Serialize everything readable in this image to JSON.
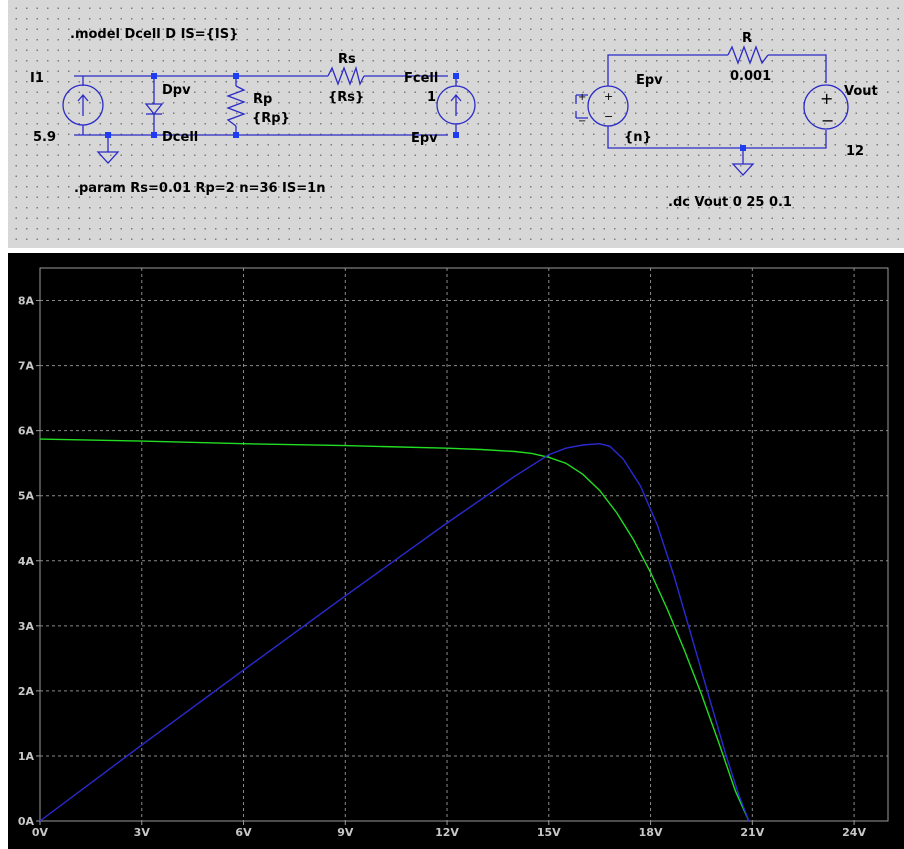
{
  "schematic": {
    "model_directive": ".model Dcell D IS={IS}",
    "param_directive": ".param Rs=0.01 Rp=2 n=36 IS=1n",
    "dc_directive": ".dc Vout 0 25 0.1",
    "i1_name": "I1",
    "i1_value": "5.9",
    "dpv_name": "Dpv",
    "dcell_label": "Dcell",
    "rp_name": "Rp",
    "rp_value": "{Rp}",
    "rs_name": "Rs",
    "rs_value": "{Rs}",
    "fcell_name": "Fcell",
    "fcell_value": "1",
    "epv_net_label": "Epv",
    "epv_name": "Epv",
    "epv_value": "{n}",
    "r_name": "R",
    "r_value": "0.001",
    "vout_name": "Vout",
    "vout_value": "12",
    "wire_color": "#2b2bc8",
    "node_color": "#1e3cf0"
  },
  "plot": {
    "background": "#000000",
    "grid_color": "#8a8a8a",
    "tick_color": "#c8c8c8"
  },
  "chart_data": {
    "type": "line",
    "xlabel": "",
    "ylabel": "",
    "x_tick_labels": [
      "0V",
      "3V",
      "6V",
      "9V",
      "12V",
      "15V",
      "18V",
      "21V",
      "24V"
    ],
    "y_tick_labels": [
      "0A",
      "1A",
      "2A",
      "3A",
      "4A",
      "5A",
      "6A",
      "7A",
      "8A"
    ],
    "xlim": [
      0,
      25
    ],
    "ylim": [
      0,
      8.5
    ],
    "grid": true,
    "series": [
      {
        "color": "#22dd22",
        "x": [
          0,
          3,
          6,
          9,
          12,
          13,
          14,
          14.5,
          15,
          15.5,
          16,
          16.5,
          17,
          17.5,
          18,
          18.5,
          19,
          19.5,
          20,
          20.5,
          20.9
        ],
        "values": [
          5.87,
          5.84,
          5.8,
          5.77,
          5.73,
          5.71,
          5.68,
          5.65,
          5.59,
          5.5,
          5.33,
          5.08,
          4.74,
          4.32,
          3.82,
          3.25,
          2.62,
          1.95,
          1.22,
          0.46,
          0
        ]
      },
      {
        "color": "#2a2ad0",
        "x": [
          0,
          3,
          6,
          9,
          12,
          14,
          15,
          15.5,
          16,
          16.5,
          16.8,
          17.2,
          17.7,
          18.2,
          18.7,
          19.2,
          19.7,
          20.2,
          20.6,
          20.9
        ],
        "values": [
          0,
          1.17,
          2.32,
          3.46,
          4.58,
          5.3,
          5.63,
          5.73,
          5.78,
          5.8,
          5.76,
          5.56,
          5.15,
          4.55,
          3.75,
          2.85,
          1.95,
          1.05,
          0.4,
          0
        ]
      }
    ]
  }
}
